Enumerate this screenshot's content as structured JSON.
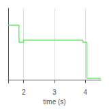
{
  "chart_data": {
    "type": "line",
    "xlabel": "time (s)",
    "x": [
      1.5,
      1.85,
      1.85,
      2.0,
      2.0,
      3.92,
      3.92,
      4.05,
      4.05,
      4.5
    ],
    "values": [
      0.8,
      0.8,
      0.55,
      0.55,
      0.58,
      0.58,
      0.55,
      0.55,
      0.02,
      0.02
    ],
    "color": "#66ee66",
    "xlim": [
      1.5,
      4.5
    ],
    "xticks": [
      2,
      3,
      4
    ],
    "ylim": [
      -0.05,
      1.05
    ],
    "yticks": [],
    "grid": true,
    "tick_labels": "x"
  }
}
